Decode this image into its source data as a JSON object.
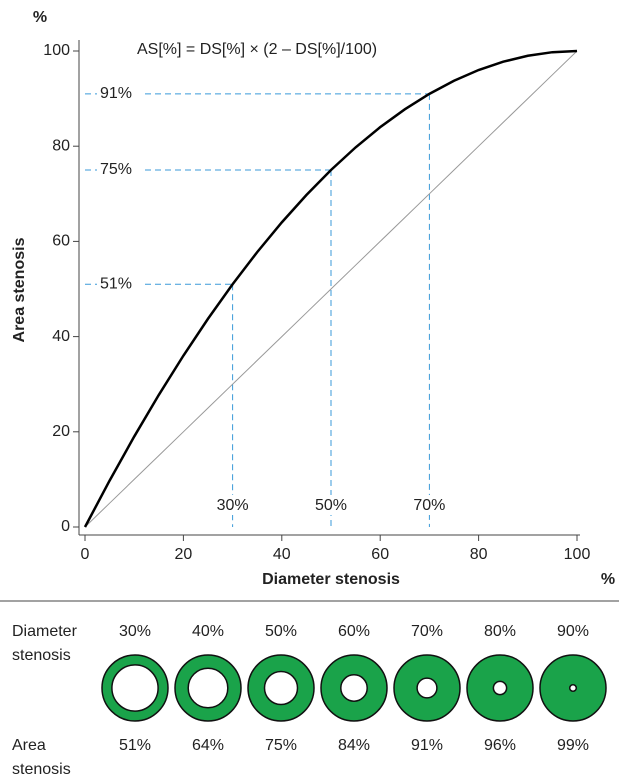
{
  "chart_data": {
    "type": "line",
    "formula": "AS[%] = DS[%] × (2 – DS[%]/100)",
    "x_label": "Diameter stenosis",
    "y_label": "Area stenosis",
    "x_unit": "%",
    "y_unit": "%",
    "x": [
      0,
      5,
      10,
      15,
      20,
      25,
      30,
      35,
      40,
      45,
      50,
      55,
      60,
      65,
      70,
      75,
      80,
      85,
      90,
      95,
      100
    ],
    "series": [
      {
        "color": "#000000",
        "values": [
          0,
          9.75,
          19,
          27.75,
          36,
          43.75,
          51,
          57.75,
          64,
          69.75,
          75,
          79.75,
          84,
          87.75,
          91,
          93.75,
          96,
          97.75,
          99,
          99.75,
          100
        ]
      },
      {
        "color": "#999999",
        "values": [
          0,
          5,
          10,
          15,
          20,
          25,
          30,
          35,
          40,
          45,
          50,
          55,
          60,
          65,
          70,
          75,
          80,
          85,
          90,
          95,
          100
        ]
      }
    ],
    "guides": [
      {
        "x": 30,
        "y": 51,
        "x_label": "30%",
        "y_label": "51%"
      },
      {
        "x": 50,
        "y": 75,
        "x_label": "50%",
        "y_label": "75%"
      },
      {
        "x": 70,
        "y": 91,
        "x_label": "70%",
        "y_label": "91%"
      }
    ],
    "guide_color": "#3a9ad9",
    "xlim": [
      0,
      100
    ],
    "ylim": [
      0,
      100
    ],
    "xticks": [
      0,
      20,
      40,
      60,
      80,
      100
    ],
    "yticks": [
      0,
      20,
      40,
      60,
      80,
      100
    ]
  },
  "rings": {
    "diameter_row_label": "Diameter stenosis",
    "area_row_label": "Area stenosis",
    "color": "#1aa34a",
    "items": [
      {
        "diameter": 30,
        "diameter_label": "30%",
        "area": 51,
        "area_label": "51%"
      },
      {
        "diameter": 40,
        "diameter_label": "40%",
        "area": 64,
        "area_label": "64%"
      },
      {
        "diameter": 50,
        "diameter_label": "50%",
        "area": 75,
        "area_label": "75%"
      },
      {
        "diameter": 60,
        "diameter_label": "60%",
        "area": 84,
        "area_label": "84%"
      },
      {
        "diameter": 70,
        "diameter_label": "70%",
        "area": 91,
        "area_label": "91%"
      },
      {
        "diameter": 80,
        "diameter_label": "80%",
        "area": 96,
        "area_label": "96%"
      },
      {
        "diameter": 90,
        "diameter_label": "90%",
        "area": 99,
        "area_label": "99%"
      }
    ]
  }
}
